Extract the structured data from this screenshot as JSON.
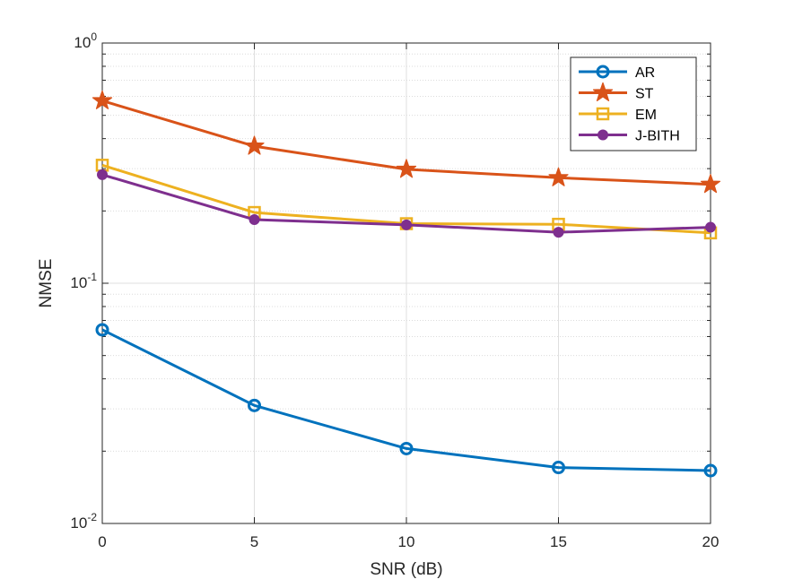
{
  "chart_data": {
    "type": "line",
    "yscale": "log",
    "title": "",
    "xlabel": "SNR (dB)",
    "ylabel": "NMSE",
    "xlim": [
      0,
      20
    ],
    "ylim": [
      0.01,
      1
    ],
    "x": [
      0,
      5,
      10,
      15,
      20
    ],
    "xticks": [
      {
        "value": 0,
        "label": "0"
      },
      {
        "value": 5,
        "label": "5"
      },
      {
        "value": 10,
        "label": "10"
      },
      {
        "value": 15,
        "label": "15"
      },
      {
        "value": 20,
        "label": "20"
      }
    ],
    "yticks": [
      {
        "value": 1,
        "base": "10",
        "exp": "0"
      },
      {
        "value": 0.1,
        "base": "10",
        "exp": "-1"
      },
      {
        "value": 0.01,
        "base": "10",
        "exp": "-2"
      }
    ],
    "grid": true,
    "legend_position": "top-right",
    "series": [
      {
        "name": "AR",
        "color": "#0072BD",
        "marker": "circle",
        "values": [
          0.064,
          0.031,
          0.0205,
          0.0171,
          0.0166
        ]
      },
      {
        "name": "ST",
        "color": "#D95319",
        "marker": "star",
        "values": [
          0.575,
          0.372,
          0.298,
          0.275,
          0.258
        ]
      },
      {
        "name": "EM",
        "color": "#EDB120",
        "marker": "square",
        "values": [
          0.31,
          0.197,
          0.177,
          0.176,
          0.162
        ]
      },
      {
        "name": "J-BITH",
        "color": "#7E2F8E",
        "marker": "dot",
        "values": [
          0.283,
          0.184,
          0.175,
          0.163,
          0.171
        ]
      }
    ]
  }
}
